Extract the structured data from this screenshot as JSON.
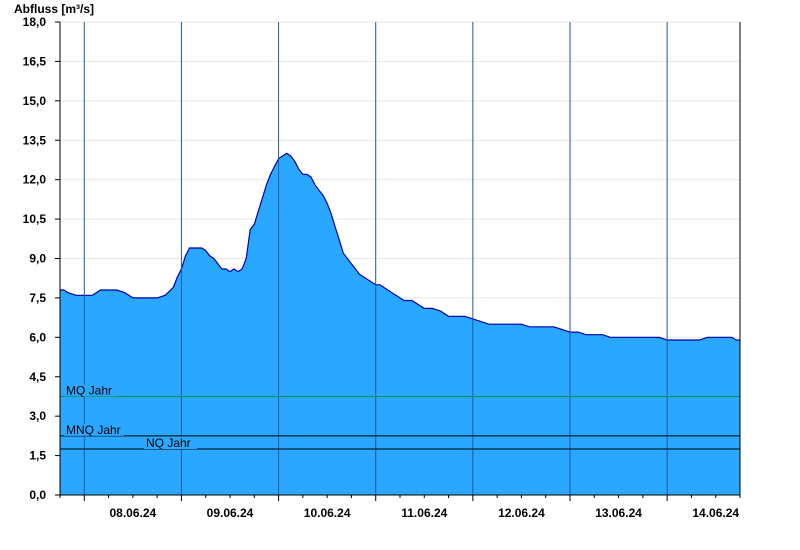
{
  "chart_data": {
    "type": "area",
    "title": "",
    "ylabel": "Abfluss [m³/s]",
    "xlabel": "",
    "ylim": [
      0,
      18
    ],
    "yticks": [
      "0,0",
      "1,5",
      "3,0",
      "4,5",
      "6,0",
      "7,5",
      "9,0",
      "10,5",
      "12,0",
      "13,5",
      "15,0",
      "16,5",
      "18,0"
    ],
    "x_day_labels": [
      "08.06.24",
      "09.06.24",
      "10.06.24",
      "11.06.24",
      "12.06.24",
      "13.06.24",
      "14.06.24"
    ],
    "x_start": "07.06.24 18:00",
    "x_end": "14.06.24 13:00",
    "area_color": "#2aa7ff",
    "line_color": "#0000aa",
    "series": [
      {
        "x": [
          0,
          1,
          2,
          4,
          6,
          8,
          10,
          12,
          14,
          16,
          18,
          20,
          22,
          24,
          26,
          28,
          29,
          30,
          31,
          32,
          33,
          34,
          35,
          36,
          37,
          38,
          39,
          40,
          41,
          42,
          43,
          44,
          45,
          46,
          47,
          48,
          49,
          50,
          51,
          52,
          53,
          54,
          55,
          56,
          57,
          58,
          59,
          60,
          61,
          62,
          63,
          64,
          65,
          66,
          67,
          68,
          69,
          70,
          71,
          72,
          73,
          74,
          75,
          76,
          77,
          78,
          79,
          80,
          81,
          82,
          83,
          84,
          85,
          86,
          87,
          88,
          89,
          90,
          92,
          94,
          96,
          98,
          100,
          102,
          104,
          106,
          108,
          110,
          112,
          114,
          116,
          118,
          120,
          122,
          124,
          126,
          128,
          130,
          132,
          134,
          136,
          138,
          140,
          142,
          144,
          146,
          148,
          150,
          152,
          154,
          156,
          158,
          160,
          162,
          163,
          164,
          165,
          166,
          167,
          168
        ],
        "y": [
          7.8,
          7.8,
          7.7,
          7.6,
          7.6,
          7.6,
          7.8,
          7.8,
          7.8,
          7.7,
          7.5,
          7.5,
          7.5,
          7.5,
          7.6,
          7.9,
          8.3,
          8.6,
          9.1,
          9.4,
          9.4,
          9.4,
          9.4,
          9.3,
          9.1,
          9.0,
          8.8,
          8.6,
          8.6,
          8.5,
          8.6,
          8.5,
          8.6,
          9.0,
          10.1,
          10.3,
          10.8,
          11.3,
          11.8,
          12.2,
          12.5,
          12.8,
          12.9,
          13.0,
          12.9,
          12.7,
          12.4,
          12.2,
          12.2,
          12.1,
          11.8,
          11.6,
          11.4,
          11.1,
          10.7,
          10.2,
          9.7,
          9.2,
          9.0,
          8.8,
          8.6,
          8.4,
          8.3,
          8.2,
          8.1,
          8.0,
          8.0,
          7.9,
          7.8,
          7.7,
          7.6,
          7.5,
          7.4,
          7.4,
          7.4,
          7.3,
          7.2,
          7.1,
          7.1,
          7.0,
          6.8,
          6.8,
          6.8,
          6.7,
          6.6,
          6.5,
          6.5,
          6.5,
          6.5,
          6.5,
          6.4,
          6.4,
          6.4,
          6.4,
          6.3,
          6.2,
          6.2,
          6.1,
          6.1,
          6.1,
          6.0,
          6.0,
          6.0,
          6.0,
          6.0,
          6.0,
          6.0,
          5.9,
          5.9,
          5.9,
          5.9,
          5.9,
          6.0,
          6.0,
          6.0,
          6.0,
          6.0,
          6.0,
          5.9,
          5.9
        ]
      }
    ],
    "reference_lines": [
      {
        "name": "MQ Jahr",
        "value": 3.75,
        "color": "#009060"
      },
      {
        "name": "MNQ Jahr",
        "value": 2.25,
        "color": "#000000"
      },
      {
        "name": "NQ Jahr",
        "value": 1.75,
        "color": "#000000"
      }
    ]
  }
}
